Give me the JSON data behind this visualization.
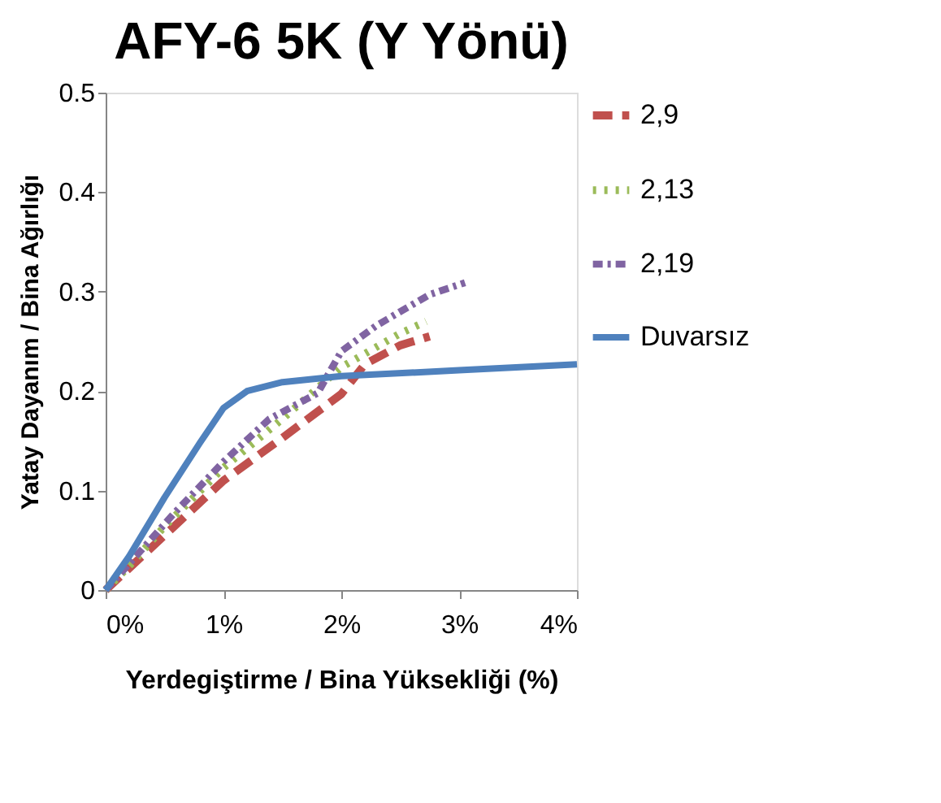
{
  "chart_data": {
    "type": "line",
    "title": "AFY-6  5K  (Y Yönü)",
    "xlabel": "Yerdegiştirme / Bina Yüksekliği (%)",
    "ylabel": "Yatay Dayanım / Bina Ağırlığı",
    "xlim": [
      0,
      4
    ],
    "xticks": [
      {
        "value": 0,
        "label": "0%"
      },
      {
        "value": 1,
        "label": "1%"
      },
      {
        "value": 2,
        "label": "2%"
      },
      {
        "value": 3,
        "label": "3%"
      },
      {
        "value": 4,
        "label": "4%"
      }
    ],
    "ylim": [
      0,
      0.5
    ],
    "yticks": [
      0,
      0.1,
      0.2,
      0.3,
      0.4,
      0.5
    ],
    "grid": false,
    "legend": "right",
    "series": [
      {
        "name": "2,9",
        "color": "#c0504d",
        "line_style": "dashed",
        "x": [
          0,
          0.5,
          1,
          1.5,
          2,
          2.2,
          2.5,
          2.75
        ],
        "values": [
          0,
          0.055,
          0.11,
          0.153,
          0.197,
          0.227,
          0.246,
          0.255
        ]
      },
      {
        "name": "2,13",
        "color": "#9bbb59",
        "line_style": "dotted",
        "x": [
          0,
          0.23,
          0.5,
          1,
          1.5,
          2,
          2.5,
          2.72
        ],
        "values": [
          0,
          0.028,
          0.064,
          0.123,
          0.172,
          0.224,
          0.258,
          0.27
        ]
      },
      {
        "name": "2,19",
        "color": "#8064a2",
        "line_style": "dashdot",
        "x": [
          0,
          0.58,
          1,
          1.39,
          1.8,
          2,
          2.3,
          2.75,
          3.05
        ],
        "values": [
          0,
          0.077,
          0.129,
          0.172,
          0.198,
          0.24,
          0.266,
          0.297,
          0.309
        ]
      },
      {
        "name": "Duvarsız",
        "color": "#4f81bd",
        "line_style": "solid",
        "x": [
          0,
          0.2,
          0.5,
          0.8,
          1,
          1.2,
          1.5,
          2,
          3,
          4
        ],
        "values": [
          0,
          0.034,
          0.093,
          0.148,
          0.183,
          0.2,
          0.209,
          0.215,
          0.221,
          0.227
        ]
      }
    ]
  }
}
